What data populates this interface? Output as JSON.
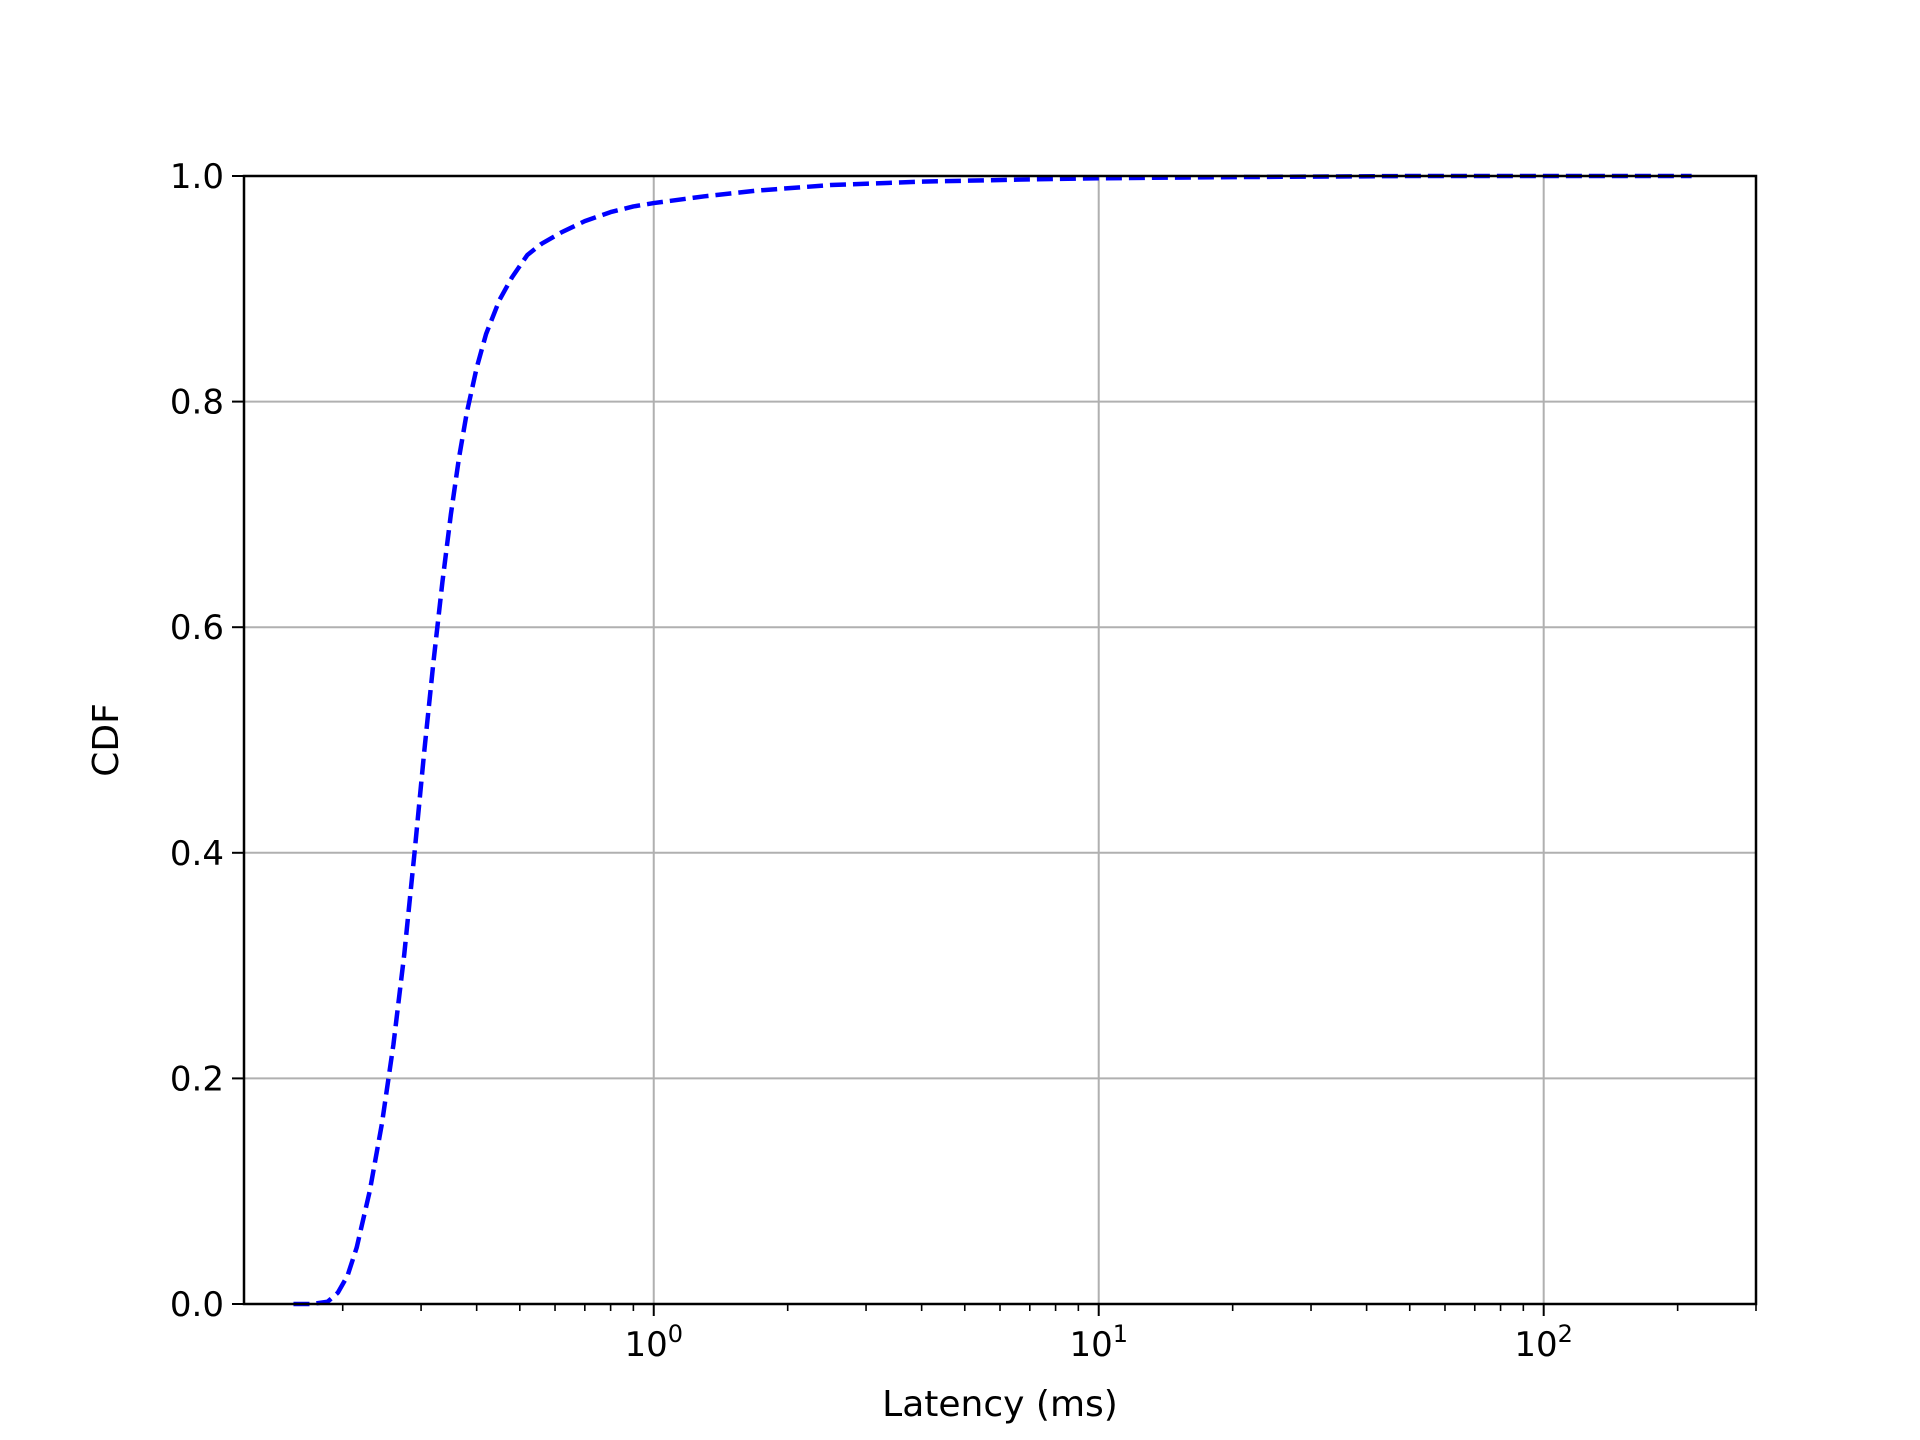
{
  "chart_data": {
    "type": "line",
    "title": "",
    "xlabel": "Latency (ms)",
    "ylabel": "CDF",
    "xscale": "log",
    "xlim": [
      0.12,
      300
    ],
    "ylim": [
      0.0,
      1.0
    ],
    "grid": true,
    "x_ticks": [
      {
        "value": 1,
        "base": "10",
        "exp": "0"
      },
      {
        "value": 10,
        "base": "10",
        "exp": "1"
      },
      {
        "value": 100,
        "base": "10",
        "exp": "2"
      }
    ],
    "y_ticks": [
      "0.0",
      "0.2",
      "0.4",
      "0.6",
      "0.8",
      "1.0"
    ],
    "series": [
      {
        "color": "#0000ff",
        "linestyle": "dashed",
        "x": [
          0.155,
          0.17,
          0.185,
          0.195,
          0.205,
          0.215,
          0.23,
          0.245,
          0.26,
          0.275,
          0.29,
          0.305,
          0.32,
          0.335,
          0.35,
          0.365,
          0.38,
          0.4,
          0.42,
          0.45,
          0.48,
          0.52,
          0.56,
          0.62,
          0.7,
          0.8,
          0.9,
          1.0,
          1.3,
          1.7,
          2.5,
          4,
          7,
          10,
          20,
          50,
          100,
          215
        ],
        "y": [
          0.0,
          0.0,
          0.002,
          0.01,
          0.025,
          0.05,
          0.1,
          0.16,
          0.23,
          0.31,
          0.4,
          0.49,
          0.57,
          0.64,
          0.7,
          0.75,
          0.79,
          0.83,
          0.86,
          0.89,
          0.91,
          0.93,
          0.94,
          0.95,
          0.96,
          0.968,
          0.973,
          0.976,
          0.982,
          0.987,
          0.992,
          0.995,
          0.997,
          0.998,
          0.999,
          1.0,
          1.0,
          1.0
        ]
      }
    ]
  }
}
